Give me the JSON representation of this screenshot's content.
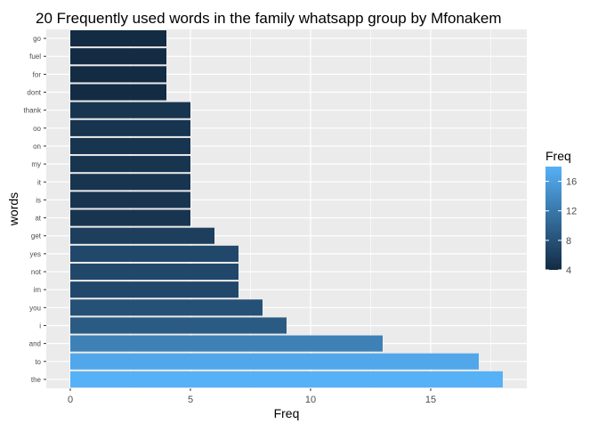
{
  "chart_data": {
    "type": "bar",
    "orientation": "horizontal",
    "title": "20 Frequently used words in the family whatsapp group by Mfonakem",
    "xlabel": "Freq",
    "ylabel": "words",
    "categories": [
      "the",
      "to",
      "and",
      "i",
      "you",
      "im",
      "not",
      "yes",
      "get",
      "at",
      "is",
      "it",
      "my",
      "on",
      "oo",
      "thank",
      "dont",
      "for",
      "fuel",
      "go"
    ],
    "values": [
      18,
      17,
      13,
      9,
      8,
      7,
      7,
      7,
      6,
      5,
      5,
      5,
      5,
      5,
      5,
      5,
      4,
      4,
      4,
      4
    ],
    "xlim": [
      0,
      18
    ],
    "xticks": [
      0,
      5,
      10,
      15
    ],
    "grid": true,
    "legend": {
      "title": "Freq",
      "position": "right",
      "ticks": [
        4,
        8,
        12,
        16
      ],
      "range": [
        4,
        18
      ],
      "low_color": "#132B43",
      "high_color": "#56B1F7"
    },
    "background_color": "#EBEBEB",
    "grid_color": "#FFFFFF"
  }
}
